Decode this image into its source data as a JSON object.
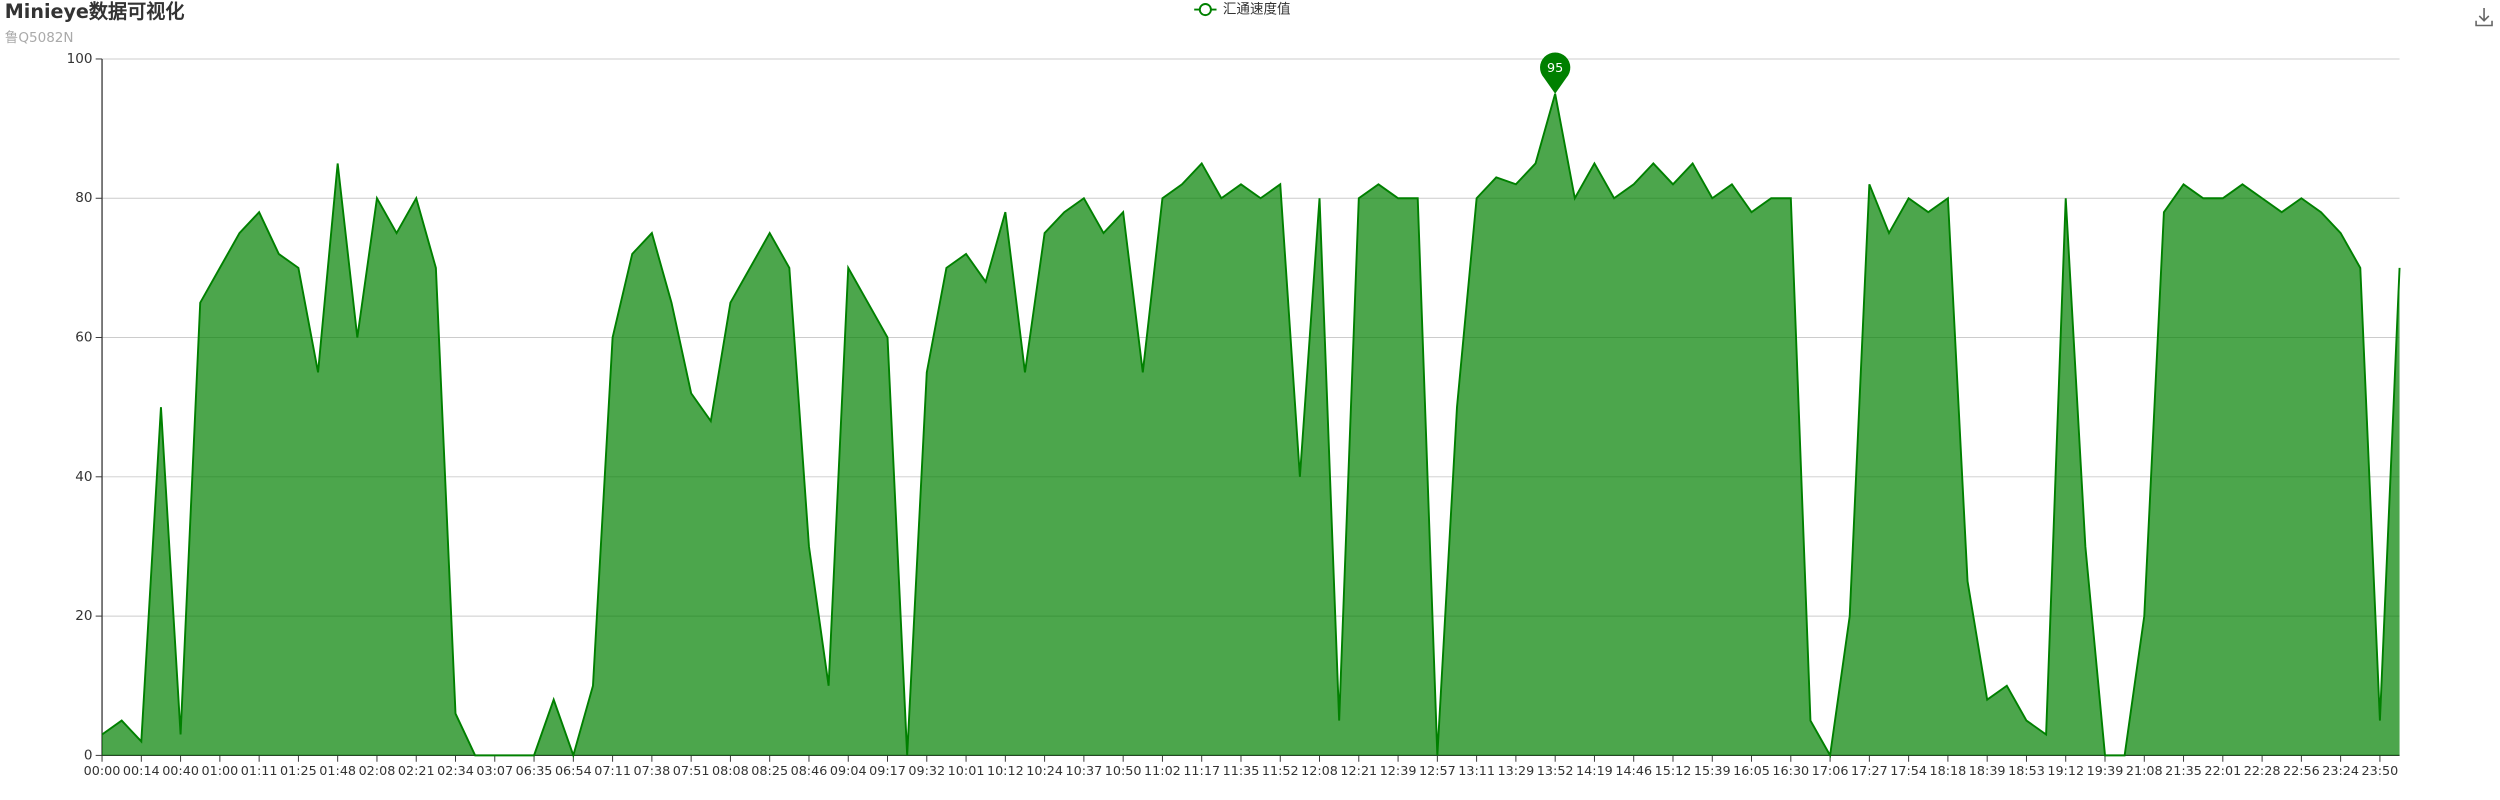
{
  "chart_data": {
    "type": "area",
    "title": "Minieye数据可视化",
    "subtitle": "鲁Q5082N",
    "categories": [
      "00:00",
      null,
      "00:14",
      null,
      "00:40",
      null,
      "01:00",
      null,
      "01:11",
      null,
      "01:25",
      null,
      "01:48",
      null,
      "02:08",
      null,
      "02:21",
      null,
      "02:34",
      null,
      "03:07",
      null,
      "06:35",
      null,
      "06:54",
      null,
      "07:11",
      null,
      "07:38",
      null,
      "07:51",
      null,
      "08:08",
      null,
      "08:25",
      null,
      "08:46",
      null,
      "09:04",
      null,
      "09:17",
      null,
      "09:32",
      null,
      "10:01",
      null,
      "10:12",
      null,
      "10:24",
      null,
      "10:37",
      null,
      "10:50",
      null,
      "11:02",
      null,
      "11:17",
      null,
      "11:35",
      null,
      "11:52",
      null,
      "12:08",
      null,
      "12:21",
      null,
      "12:39",
      null,
      "12:57",
      null,
      "13:11",
      null,
      "13:29",
      null,
      "13:52",
      null,
      "14:19",
      null,
      "14:46",
      null,
      "15:12",
      null,
      "15:39",
      null,
      "16:05",
      null,
      "16:30",
      null,
      "17:06",
      null,
      "17:27",
      null,
      "17:54",
      null,
      "18:18",
      null,
      "18:39",
      null,
      "18:53",
      null,
      "19:12",
      null,
      "19:39",
      null,
      "21:08",
      null,
      "21:35",
      null,
      "22:01",
      null,
      "22:28",
      null,
      "22:56",
      null,
      "23:24",
      null,
      "23:50",
      null
    ],
    "series": [
      {
        "name": "汇通速度值",
        "color": "#008000",
        "values": [
          3,
          5,
          2,
          50,
          3,
          65,
          70,
          75,
          78,
          72,
          70,
          55,
          85,
          60,
          80,
          75,
          80,
          70,
          6,
          0,
          0,
          0,
          0,
          8,
          0,
          10,
          60,
          72,
          75,
          65,
          52,
          48,
          65,
          70,
          75,
          70,
          30,
          10,
          70,
          65,
          60,
          0,
          55,
          70,
          72,
          68,
          78,
          55,
          75,
          78,
          80,
          75,
          78,
          55,
          80,
          82,
          85,
          80,
          82,
          80,
          82,
          40,
          80,
          5,
          80,
          82,
          80,
          80,
          0,
          50,
          80,
          83,
          82,
          85,
          95,
          80,
          85,
          80,
          82,
          85,
          82,
          85,
          80,
          82,
          78,
          80,
          80,
          5,
          0,
          20,
          82,
          75,
          80,
          78,
          80,
          25,
          8,
          10,
          5,
          3,
          80,
          30,
          0,
          0,
          20,
          78,
          82,
          80,
          80,
          82,
          80,
          78,
          80,
          78,
          75,
          70,
          5,
          70
        ]
      }
    ],
    "ylim": [
      0,
      100
    ],
    "yticks": [
      0,
      20,
      40,
      60,
      80,
      100
    ],
    "grid": true,
    "legend": "top"
  }
}
